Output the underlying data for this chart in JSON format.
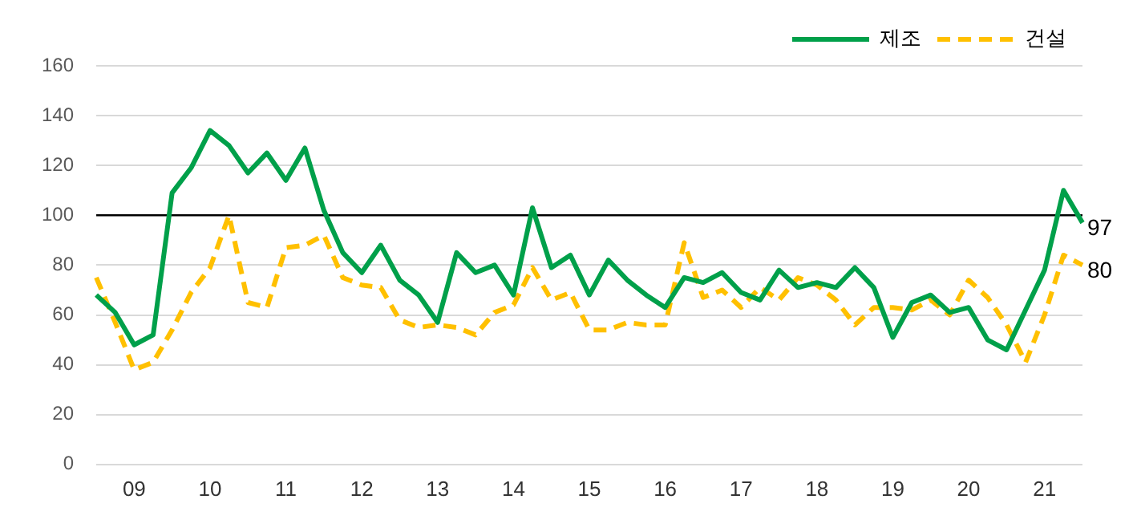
{
  "chart_data": {
    "type": "line",
    "categories": [
      null,
      null,
      "09",
      null,
      null,
      null,
      "10",
      null,
      null,
      null,
      "11",
      null,
      null,
      null,
      "12",
      null,
      null,
      null,
      "13",
      null,
      null,
      null,
      "14",
      null,
      null,
      null,
      "15",
      null,
      null,
      null,
      "16",
      null,
      null,
      null,
      "17",
      null,
      null,
      null,
      "18",
      null,
      null,
      null,
      "19",
      null,
      null,
      null,
      "20",
      null,
      null,
      null,
      "21",
      null,
      null
    ],
    "series": [
      {
        "name": "제조",
        "color": "#00a04a",
        "line_style": "solid",
        "values": [
          68,
          61,
          48,
          52,
          109,
          119,
          134,
          128,
          117,
          125,
          114,
          127,
          102,
          85,
          77,
          88,
          74,
          68,
          57,
          85,
          77,
          80,
          68,
          103,
          79,
          84,
          68,
          82,
          74,
          68,
          63,
          75,
          73,
          77,
          69,
          66,
          78,
          71,
          73,
          71,
          79,
          71,
          51,
          65,
          68,
          61,
          63,
          50,
          46,
          62,
          78,
          110,
          97
        ],
        "value_labels": [
          null,
          null,
          null,
          null,
          null,
          null,
          null,
          null,
          null,
          null,
          null,
          null,
          null,
          null,
          null,
          null,
          null,
          null,
          null,
          null,
          null,
          null,
          null,
          null,
          null,
          null,
          null,
          null,
          null,
          null,
          null,
          null,
          null,
          null,
          null,
          null,
          null,
          null,
          null,
          null,
          null,
          null,
          null,
          null,
          null,
          null,
          null,
          null,
          null,
          null,
          null,
          null,
          "97"
        ]
      },
      {
        "name": "건설",
        "color": "#ffc000",
        "line_style": "dashed",
        "values": [
          75,
          57,
          38,
          41,
          54,
          69,
          79,
          100,
          65,
          63,
          87,
          88,
          92,
          75,
          72,
          71,
          58,
          55,
          56,
          55,
          52,
          61,
          64,
          79,
          66,
          69,
          54,
          54,
          57,
          56,
          56,
          89,
          67,
          70,
          63,
          71,
          66,
          75,
          72,
          66,
          56,
          63,
          63,
          62,
          66,
          60,
          74,
          67,
          56,
          41,
          60,
          84,
          80
        ],
        "value_labels": [
          null,
          null,
          null,
          null,
          null,
          null,
          null,
          null,
          null,
          null,
          null,
          null,
          null,
          null,
          null,
          null,
          null,
          null,
          null,
          null,
          null,
          null,
          null,
          null,
          null,
          null,
          null,
          null,
          null,
          null,
          null,
          null,
          null,
          null,
          null,
          null,
          null,
          null,
          null,
          null,
          null,
          null,
          null,
          null,
          null,
          null,
          null,
          null,
          null,
          null,
          null,
          null,
          "80"
        ]
      }
    ],
    "ylim": [
      0,
      160
    ],
    "yticks": [
      0,
      20,
      40,
      60,
      80,
      100,
      120,
      140,
      160
    ],
    "grid": "y",
    "legend": "top right",
    "marker": "none",
    "ref_lines": [
      {
        "axis": "y",
        "value": 100,
        "color": "#000000"
      }
    ]
  }
}
